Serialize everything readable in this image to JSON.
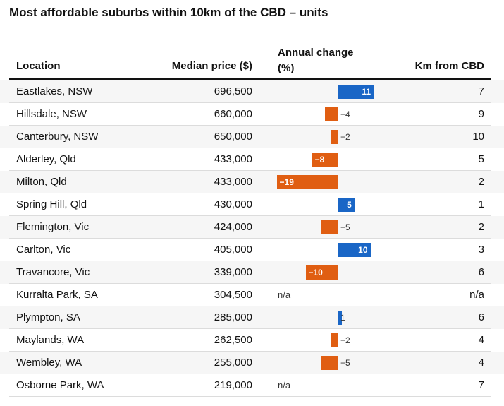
{
  "title": "Most affordable suburbs within 10km of the CBD – units",
  "headers": {
    "location": "Location",
    "median_price": "Median price ($)",
    "annual_change_line1": "Annual change",
    "annual_change_line2": "(%)",
    "km_from_cbd": "Km from CBD"
  },
  "colors": {
    "positive": "#1a66c6",
    "negative": "#e05e12"
  },
  "chart_data": {
    "type": "table",
    "title": "Most affordable suburbs within 10km of the CBD – units",
    "columns": [
      "Location",
      "Median price ($)",
      "Annual change (%)",
      "Km from CBD"
    ],
    "bar_column": "Annual change (%)",
    "bar_range": [
      -19,
      11
    ],
    "rows": [
      {
        "location": "Eastlakes, NSW",
        "price": "696,500",
        "change": 11,
        "change_label": "11",
        "km": "7"
      },
      {
        "location": "Hillsdale, NSW",
        "price": "660,000",
        "change": -4,
        "change_label": "−4",
        "km": "9"
      },
      {
        "location": "Canterbury, NSW",
        "price": "650,000",
        "change": -2,
        "change_label": "−2",
        "km": "10"
      },
      {
        "location": "Alderley, Qld",
        "price": "433,000",
        "change": -8,
        "change_label": "−8",
        "km": "5"
      },
      {
        "location": "Milton, Qld",
        "price": "433,000",
        "change": -19,
        "change_label": "−19",
        "km": "2"
      },
      {
        "location": "Spring Hill, Qld",
        "price": "430,000",
        "change": 5,
        "change_label": "5",
        "km": "1"
      },
      {
        "location": "Flemington, Vic",
        "price": "424,000",
        "change": -5,
        "change_label": "−5",
        "km": "2"
      },
      {
        "location": "Carlton, Vic",
        "price": "405,000",
        "change": 10,
        "change_label": "10",
        "km": "3"
      },
      {
        "location": "Travancore, Vic",
        "price": "339,000",
        "change": -10,
        "change_label": "−10",
        "km": "6"
      },
      {
        "location": "Kurralta Park, SA",
        "price": "304,500",
        "change": null,
        "change_label": "n/a",
        "km": "n/a"
      },
      {
        "location": "Plympton, SA",
        "price": "285,000",
        "change": 1,
        "change_label": "1",
        "km": "6"
      },
      {
        "location": "Maylands, WA",
        "price": "262,500",
        "change": -2,
        "change_label": "−2",
        "km": "4"
      },
      {
        "location": "Wembley, WA",
        "price": "255,000",
        "change": -5,
        "change_label": "−5",
        "km": "4"
      },
      {
        "location": "Osborne Park, WA",
        "price": "219,000",
        "change": null,
        "change_label": "n/a",
        "km": "7"
      }
    ]
  }
}
